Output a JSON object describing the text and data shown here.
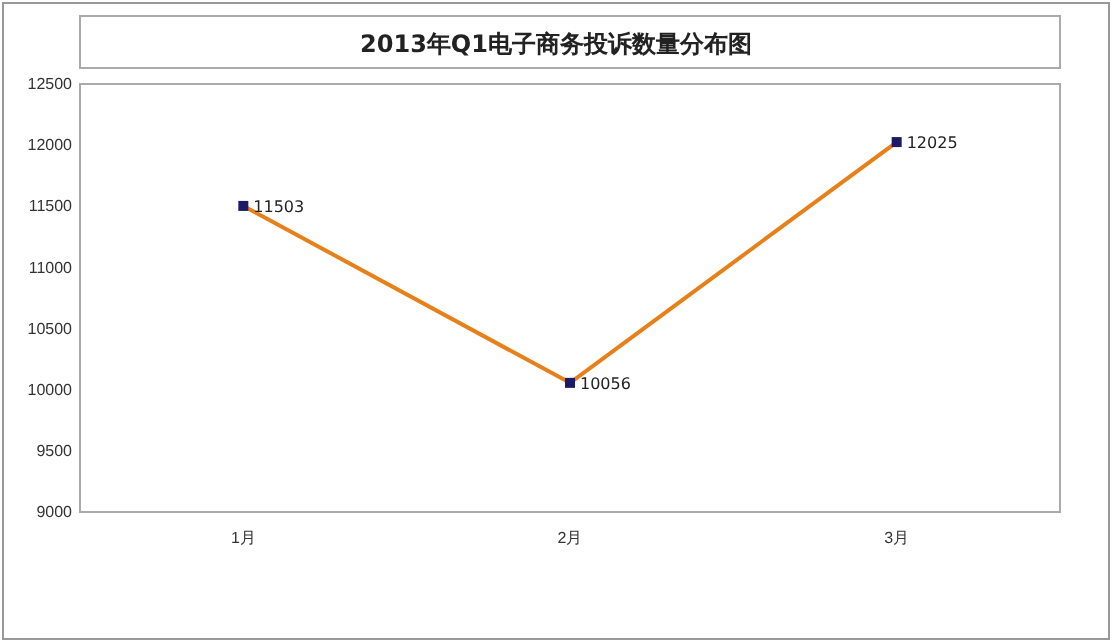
{
  "chart_data": {
    "type": "line",
    "title": "2013年Q1电子商务投诉数量分布图",
    "categories": [
      "1月",
      "2月",
      "3月"
    ],
    "series": [
      {
        "color": "#e8801a",
        "values": [
          11503,
          10056,
          12025
        ]
      }
    ],
    "ylim": [
      9000,
      12500
    ],
    "yticks": [
      9000,
      9500,
      10000,
      10500,
      11000,
      11500,
      12000,
      12500
    ],
    "grid": false,
    "marker": "square",
    "line_style": "solid",
    "data_labels": true
  }
}
